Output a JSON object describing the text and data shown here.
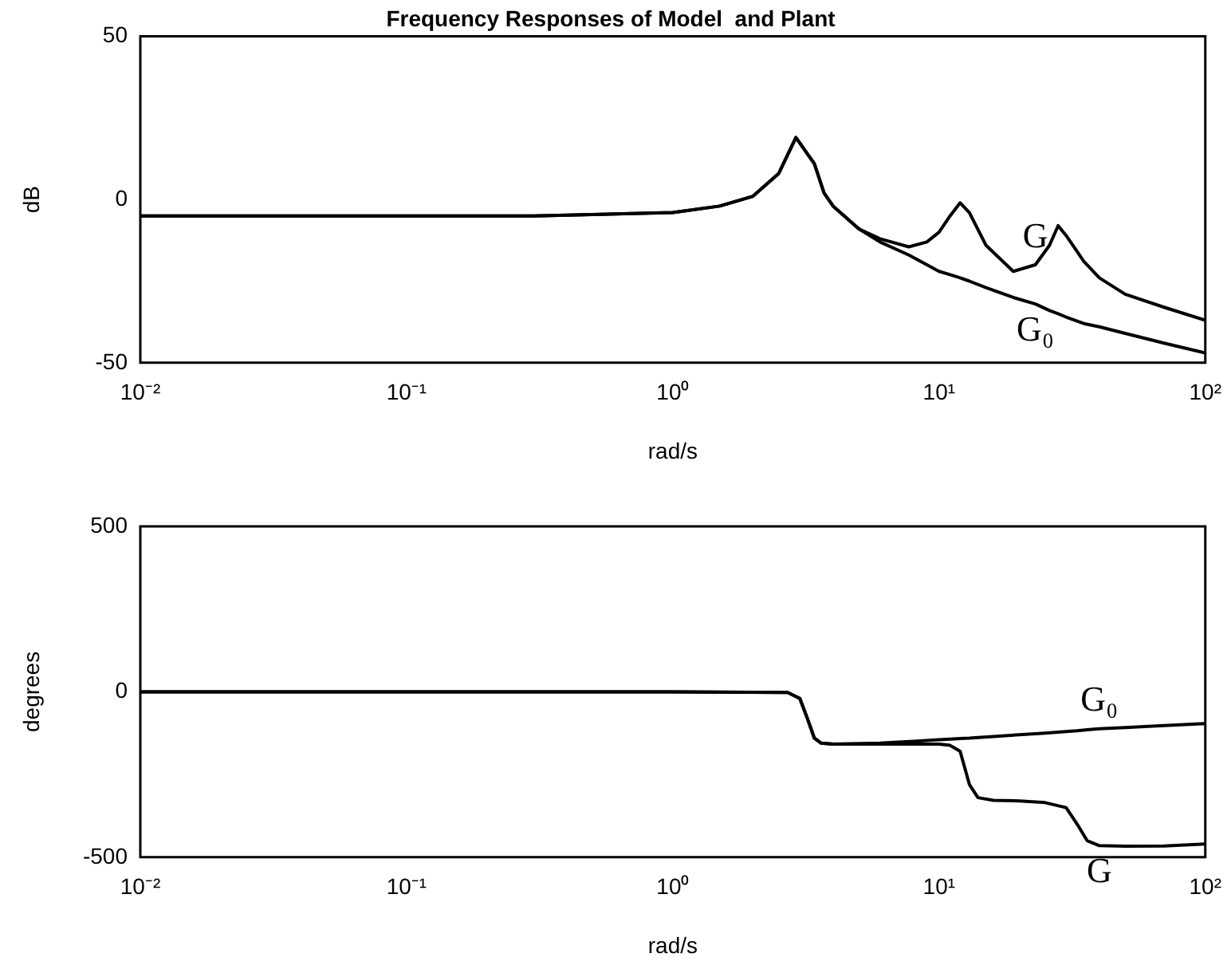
{
  "chart_data": [
    {
      "type": "line",
      "title": "Frequency Responses of Model  and Plant",
      "xlabel": "rad/s",
      "ylabel": "dB",
      "log": "x",
      "grid": false,
      "legend": false,
      "marker": "none",
      "line_style": "solid",
      "x": [
        0.01,
        0.03,
        0.1,
        0.3,
        1,
        1.5,
        2,
        2.5,
        2.9,
        3.4,
        3.7,
        4,
        5,
        6,
        7.7,
        9,
        10,
        11,
        12,
        13,
        15,
        19,
        23,
        26,
        28,
        30,
        35,
        40,
        50,
        70,
        100
      ],
      "xlim": [
        0.01,
        100
      ],
      "xticks": [
        {
          "value": 0.01,
          "label": "10⁻²"
        },
        {
          "value": 0.1,
          "label": "10⁻¹"
        },
        {
          "value": 1,
          "label": "10⁰"
        },
        {
          "value": 10,
          "label": "10¹"
        },
        {
          "value": 100,
          "label": "10²"
        }
      ],
      "ylim": [
        -50,
        50
      ],
      "yticks": [
        -50,
        0,
        50
      ],
      "series": [
        {
          "name": "G",
          "color": "#000000",
          "values": [
            -5,
            -5,
            -5,
            -5,
            -4,
            -2,
            1,
            8,
            19,
            11,
            2,
            -2,
            -9,
            -12,
            -14.5,
            -13,
            -10,
            -5,
            -1,
            -4,
            -14,
            -22,
            -20,
            -14,
            -8,
            -11,
            -19,
            -24,
            -29,
            -33,
            -37
          ]
        },
        {
          "name": "G₀",
          "color": "#000000",
          "values": [
            -5,
            -5,
            -5,
            -5,
            -4,
            -2,
            1,
            8,
            19,
            11,
            2,
            -2,
            -9,
            -13,
            -17,
            -20,
            -22,
            -23,
            -24,
            -25,
            -27,
            -30,
            -32,
            -34,
            -35,
            -36,
            -38,
            -39,
            -41,
            -44,
            -47
          ]
        }
      ]
    },
    {
      "type": "line",
      "xlabel": "rad/s",
      "ylabel": "degrees",
      "log": "x",
      "grid": false,
      "legend": false,
      "marker": "none",
      "line_style": "solid",
      "x": [
        0.01,
        0.1,
        1,
        2.7,
        3,
        3.2,
        3.4,
        3.6,
        4,
        6,
        8,
        10,
        11,
        12,
        13,
        14,
        16,
        20,
        25,
        30,
        33,
        36,
        40,
        50,
        70,
        100
      ],
      "xlim": [
        0.01,
        100
      ],
      "xticks": [
        {
          "value": 0.01,
          "label": "10⁻²"
        },
        {
          "value": 0.1,
          "label": "10⁻¹"
        },
        {
          "value": 1,
          "label": "10⁰"
        },
        {
          "value": 10,
          "label": "10¹"
        },
        {
          "value": 100,
          "label": "10²"
        }
      ],
      "ylim": [
        -500,
        500
      ],
      "yticks": [
        -500,
        0,
        500
      ],
      "series": [
        {
          "name": "G₀",
          "color": "#000000",
          "values": [
            0,
            0,
            0,
            -2,
            -20,
            -80,
            -140,
            -155,
            -158,
            -155,
            -150,
            -145,
            -143,
            -141,
            -140,
            -138,
            -135,
            -130,
            -125,
            -120,
            -118,
            -115,
            -112,
            -108,
            -102,
            -96
          ]
        },
        {
          "name": "G",
          "color": "#000000",
          "values": [
            0,
            0,
            0,
            -2,
            -20,
            -80,
            -140,
            -155,
            -158,
            -158,
            -158,
            -158,
            -162,
            -180,
            -280,
            -320,
            -328,
            -330,
            -335,
            -350,
            -400,
            -450,
            -465,
            -467,
            -466,
            -460
          ]
        }
      ]
    }
  ]
}
